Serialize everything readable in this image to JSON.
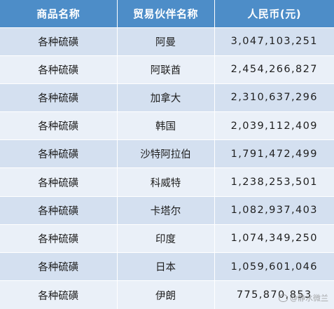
{
  "table": {
    "headers": [
      "商品名称",
      "贸易伙伴名称",
      "人民币(元)"
    ],
    "rows": [
      [
        "各种硫磺",
        "阿曼",
        "3,047,103,251"
      ],
      [
        "各种硫磺",
        "阿联酋",
        "2,454,266,827"
      ],
      [
        "各种硫磺",
        "加拿大",
        "2,310,637,296"
      ],
      [
        "各种硫磺",
        "韩国",
        "2,039,112,409"
      ],
      [
        "各种硫磺",
        "沙特阿拉伯",
        "1,791,472,499"
      ],
      [
        "各种硫磺",
        "科威特",
        "1,238,253,501"
      ],
      [
        "各种硫磺",
        "卡塔尔",
        "1,082,937,403"
      ],
      [
        "各种硫磺",
        "印度",
        "1,074,349,250"
      ],
      [
        "各种硫磺",
        "日本",
        "1,059,601,046"
      ],
      [
        "各种硫磺",
        "伊朗",
        "775,870,853"
      ]
    ]
  },
  "watermark": {
    "text": "@静水微兰",
    "icon": "weibo-icon"
  },
  "colors": {
    "header_bg": "#4d8dc8",
    "row_odd_bg": "#d4e0f0",
    "row_even_bg": "#eaf0f8"
  }
}
